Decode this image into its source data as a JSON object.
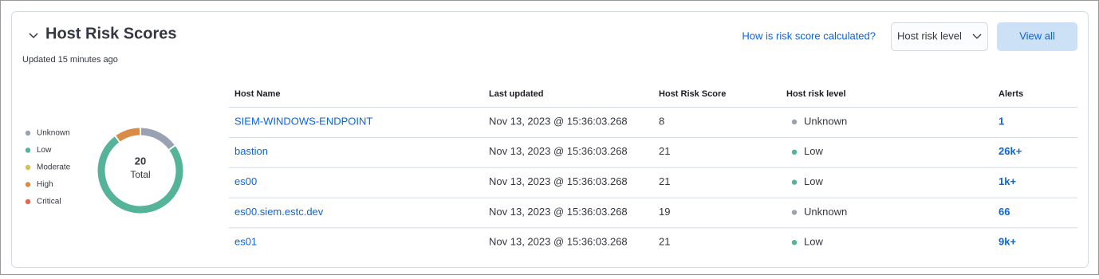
{
  "header": {
    "title": "Host Risk Scores",
    "updated": "Updated 15 minutes ago",
    "link": "How is risk score calculated?",
    "select": "Host risk level",
    "button": "View all"
  },
  "chart_data": {
    "type": "donut",
    "total": 20,
    "total_label": "Total",
    "series": [
      {
        "name": "Unknown",
        "color": "#98a2b3",
        "value": 3
      },
      {
        "name": "Low",
        "color": "#54b399",
        "value": 15
      },
      {
        "name": "Moderate",
        "color": "#d6bf57",
        "value": 0
      },
      {
        "name": "High",
        "color": "#da8b45",
        "value": 2
      },
      {
        "name": "Critical",
        "color": "#e7664c",
        "value": 0
      }
    ]
  },
  "table": {
    "columns": [
      "Host Name",
      "Last updated",
      "Host Risk Score",
      "Host risk level",
      "Alerts"
    ],
    "rows": [
      [
        "SIEM-WINDOWS-ENDPOINT",
        "Nov 13, 2023 @ 15:36:03.268",
        "8",
        "Unknown",
        "1"
      ],
      [
        "bastion",
        "Nov 13, 2023 @ 15:36:03.268",
        "21",
        "Low",
        "26k+"
      ],
      [
        "es00",
        "Nov 13, 2023 @ 15:36:03.268",
        "21",
        "Low",
        "1k+"
      ],
      [
        "es00.siem.estc.dev",
        "Nov 13, 2023 @ 15:36:03.268",
        "19",
        "Unknown",
        "66"
      ],
      [
        "es01",
        "Nov 13, 2023 @ 15:36:03.268",
        "21",
        "Low",
        "9k+"
      ]
    ]
  }
}
